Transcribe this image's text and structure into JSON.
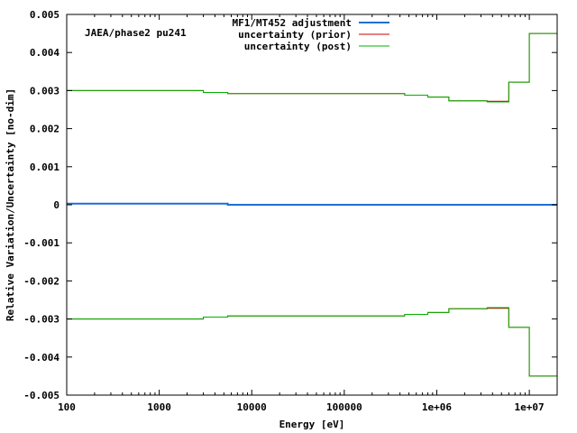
{
  "chart_data": {
    "type": "line",
    "title": "",
    "annotation": "JAEA/phase2 pu241",
    "xlabel": "Energy [eV]",
    "ylabel": "Relative Variation/Uncertainty [no-dim]",
    "xscale": "log",
    "xlim": [
      100,
      20000000
    ],
    "ylim": [
      -0.005,
      0.005
    ],
    "x_ticks": [
      {
        "value": 100,
        "label": "100"
      },
      {
        "value": 1000,
        "label": "1000"
      },
      {
        "value": 10000,
        "label": "10000"
      },
      {
        "value": 100000,
        "label": "100000"
      },
      {
        "value": 1000000,
        "label": "1e+06"
      },
      {
        "value": 10000000,
        "label": "1e+07"
      }
    ],
    "y_ticks": [
      {
        "value": 0.005,
        "label": "0.005"
      },
      {
        "value": 0.004,
        "label": "0.004"
      },
      {
        "value": 0.003,
        "label": "0.003"
      },
      {
        "value": 0.002,
        "label": "0.002"
      },
      {
        "value": 0.001,
        "label": "0.001"
      },
      {
        "value": 0,
        "label": "0"
      },
      {
        "value": -0.001,
        "label": "-0.001"
      },
      {
        "value": -0.002,
        "label": "-0.002"
      },
      {
        "value": -0.003,
        "label": "-0.003"
      },
      {
        "value": -0.004,
        "label": "-0.004"
      },
      {
        "value": -0.005,
        "label": "-0.005"
      }
    ],
    "legend_position": "top-center",
    "grid": false,
    "step_edges": [
      100,
      3000,
      5500,
      450000,
      800000,
      1350000,
      3500000,
      6000000,
      10000000,
      20000000
    ],
    "series": [
      {
        "name": "uncertainty (prior)",
        "color": "#cc0000",
        "style": "step",
        "width": 1,
        "mirror": true,
        "values": [
          0.003,
          0.00295,
          0.00292,
          0.00288,
          0.00283,
          0.00273,
          0.00272,
          0.00322,
          0.0045
        ]
      },
      {
        "name": "uncertainty (post)",
        "color": "#00b000",
        "style": "step",
        "width": 1,
        "mirror": true,
        "values": [
          0.003,
          0.00295,
          0.00292,
          0.00288,
          0.00283,
          0.00273,
          0.0027,
          0.00322,
          0.0045
        ]
      },
      {
        "name": "MF1/MT452 adjustment",
        "color": "#1f6fd0",
        "style": "step",
        "width": 2,
        "mirror": false,
        "values": [
          3e-05,
          3e-05,
          0.0,
          0.0,
          0.0,
          0.0,
          0.0,
          0.0,
          0.0
        ]
      }
    ],
    "legend_order": [
      2,
      0,
      1
    ]
  }
}
